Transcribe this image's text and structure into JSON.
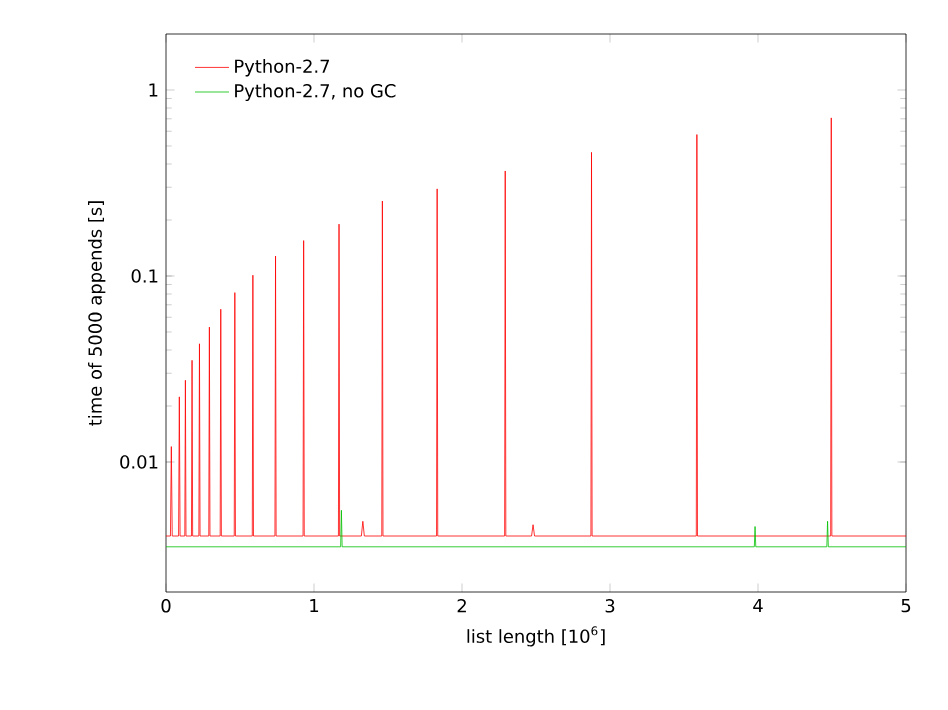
{
  "chart_data": {
    "type": "line",
    "xlabel": "list length [10$^{6}$]",
    "ylabel": "time of 5000 appends [s]",
    "log": "y",
    "xlim": [
      0,
      5
    ],
    "xticks": [
      0,
      1,
      2,
      3,
      4,
      5
    ],
    "ylim": [
      0.002,
      2
    ],
    "yticks": [
      0.01,
      0.1,
      1
    ],
    "legend": "top left",
    "grid": false,
    "marker": "none",
    "line_style": "solid",
    "series": [
      {
        "name": "Python-2.7",
        "color": "#ff0000",
        "x": [
          0,
          0.03,
          0.036,
          0.042,
          0.085,
          0.09,
          0.095,
          0.127,
          0.131,
          0.135,
          0.172,
          0.176,
          0.18,
          0.222,
          0.226,
          0.23,
          0.289,
          0.293,
          0.297,
          0.366,
          0.37,
          0.374,
          0.461,
          0.465,
          0.469,
          0.583,
          0.587,
          0.591,
          0.736,
          0.74,
          0.744,
          0.926,
          0.93,
          0.934,
          1.165,
          1.169,
          1.173,
          1.32,
          1.33,
          1.34,
          1.458,
          1.462,
          1.466,
          1.828,
          1.832,
          1.836,
          2.288,
          2.292,
          2.296,
          2.47,
          2.48,
          2.49,
          2.871,
          2.875,
          2.879,
          3.583,
          3.587,
          3.591,
          4.491,
          4.495,
          4.499,
          5
        ],
        "values": [
          0.004,
          0.004,
          0.0121,
          0.004,
          0.004,
          0.0224,
          0.004,
          0.004,
          0.0275,
          0.004,
          0.004,
          0.0352,
          0.004,
          0.004,
          0.0432,
          0.004,
          0.004,
          0.0531,
          0.004,
          0.004,
          0.0663,
          0.004,
          0.004,
          0.0814,
          0.004,
          0.004,
          0.101,
          0.004,
          0.004,
          0.128,
          0.004,
          0.004,
          0.155,
          0.004,
          0.004,
          0.19,
          0.004,
          0.004,
          0.0048,
          0.004,
          0.004,
          0.253,
          0.004,
          0.004,
          0.294,
          0.004,
          0.004,
          0.367,
          0.004,
          0.004,
          0.0046,
          0.004,
          0.004,
          0.462,
          0.004,
          0.004,
          0.576,
          0.004,
          0.004,
          0.708,
          0.004,
          0.004
        ]
      },
      {
        "name": "Python-2.7, no GC",
        "color": "#00c000",
        "x": [
          0,
          1.18,
          1.185,
          1.19,
          3.975,
          3.98,
          3.985,
          4.465,
          4.47,
          4.475,
          5
        ],
        "values": [
          0.0035,
          0.0035,
          0.0055,
          0.0035,
          0.0035,
          0.0045,
          0.0035,
          0.0035,
          0.0048,
          0.0035,
          0.0035
        ]
      }
    ]
  }
}
